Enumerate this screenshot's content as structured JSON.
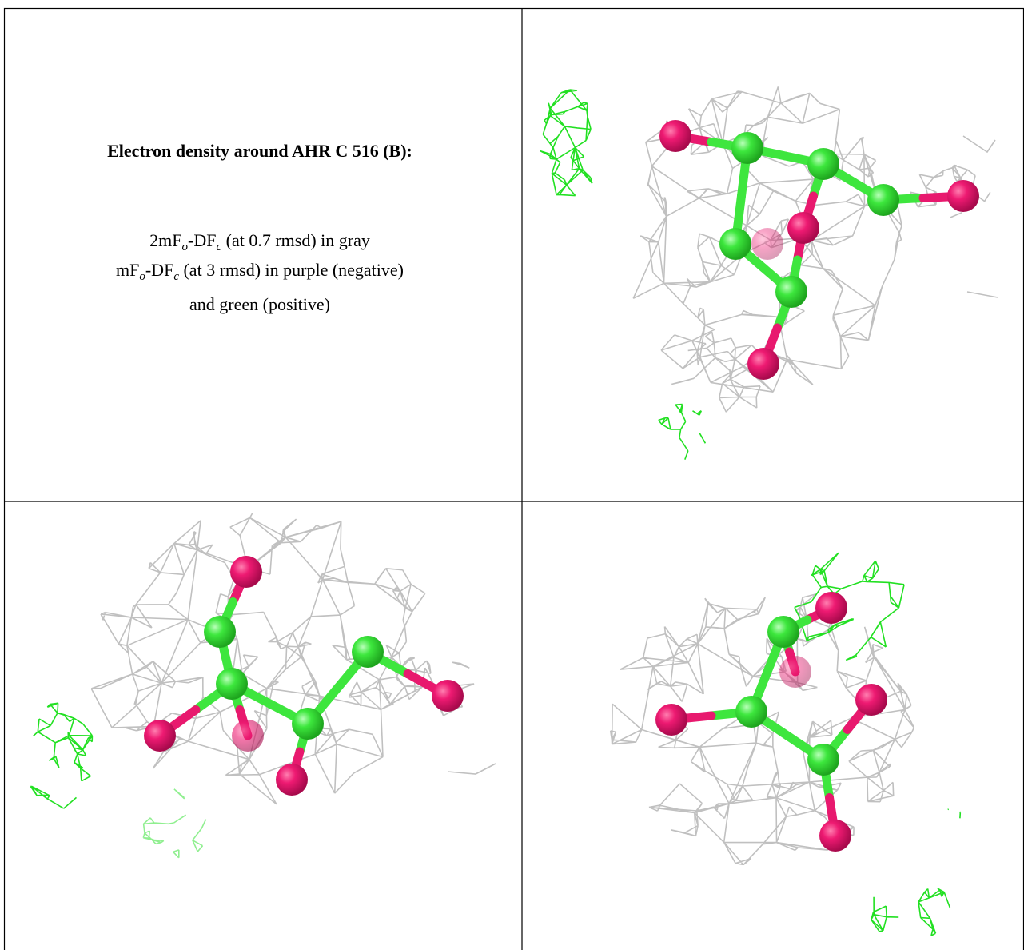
{
  "text": {
    "title": "Electron density around AHR C 516 (B):",
    "lines": [
      {
        "parts": [
          "2mF",
          "o",
          "-DF",
          "c",
          " (at 0.7 rmsd) in gray"
        ]
      },
      {
        "parts": [
          "mF",
          "o",
          "-DF",
          "c",
          " (at 3 rmsd) in purple (negative)"
        ]
      },
      {
        "parts": [
          "and green (positive)"
        ]
      }
    ]
  }
}
